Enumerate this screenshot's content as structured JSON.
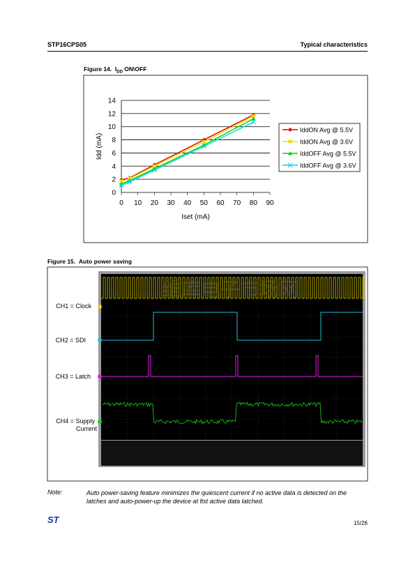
{
  "header": {
    "left": "STP16CPS05",
    "right": "Typical characteristics"
  },
  "figure14": {
    "label": "Figure 14.",
    "title_main": "I",
    "title_sub": "DD",
    "title_rest": " ON\\OFF"
  },
  "chart_data": {
    "type": "line",
    "x_label": "Iset (mA)",
    "y_label": "Idd (mA)",
    "x": [
      0,
      5,
      20,
      50,
      80
    ],
    "series": [
      {
        "name": "IddON Avg @ 5.5V",
        "color": "#e00000",
        "marker": "diamond",
        "values": [
          1.9,
          2.2,
          4.2,
          8.0,
          11.8
        ]
      },
      {
        "name": "IddON Avg @ 3.6V",
        "color": "#f0e000",
        "marker": "square",
        "values": [
          1.7,
          2.1,
          4.0,
          7.7,
          11.6
        ]
      },
      {
        "name": "IddOFF Avg @ 5.5V",
        "color": "#00d000",
        "marker": "triangle",
        "values": [
          1.3,
          1.8,
          3.6,
          7.2,
          11.2
        ]
      },
      {
        "name": "IddOFF Avg @ 3.6V",
        "color": "#00d8f0",
        "marker": "cross",
        "values": [
          1.1,
          1.6,
          3.4,
          7.0,
          10.7
        ]
      }
    ],
    "xlim": [
      0,
      90
    ],
    "xticks": [
      0,
      10,
      20,
      30,
      40,
      50,
      60,
      70,
      80,
      90
    ],
    "ylim": [
      0,
      14
    ],
    "yticks": [
      0,
      2,
      4,
      6,
      8,
      10,
      12,
      14
    ],
    "grid": true,
    "legend": "right"
  },
  "figure15": {
    "label": "Figure 15.",
    "title": "Auto power saving",
    "watermark": "维库电子市场网",
    "channels": [
      "CH1 = Clock",
      "CH2 = SDI",
      "CH3 = Latch",
      "CH4 = Supply",
      "Current"
    ]
  },
  "note": {
    "label": "Note:",
    "text": "Auto power-saving feature minimizes the quiescent current if no active data is detected on the latches and auto-power-up the device at fist active data latched."
  },
  "footer": {
    "logo": "ST",
    "page": "15/26"
  }
}
